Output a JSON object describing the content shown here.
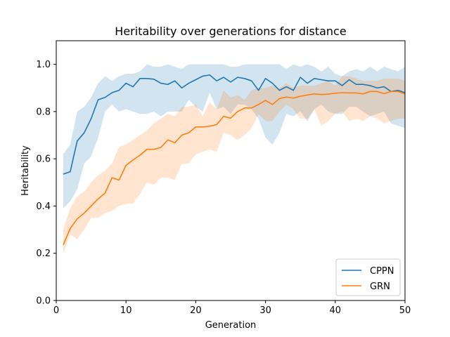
{
  "chart_data": {
    "type": "line",
    "title": "Heritability over generations for distance",
    "xlabel": "Generation",
    "ylabel": "Heritability",
    "xlim": [
      0,
      50
    ],
    "ylim": [
      0,
      1.1
    ],
    "xticks": [
      0,
      10,
      20,
      30,
      40,
      50
    ],
    "yticks": [
      0.0,
      0.2,
      0.4,
      0.6,
      0.8,
      1.0
    ],
    "xtick_labels": [
      "0",
      "10",
      "20",
      "30",
      "40",
      "50"
    ],
    "ytick_labels": [
      "0.0",
      "0.2",
      "0.4",
      "0.6",
      "0.8",
      "1.0"
    ],
    "grid": false,
    "legend_position": "lower-right",
    "x": [
      1,
      2,
      3,
      4,
      5,
      6,
      7,
      8,
      9,
      10,
      11,
      12,
      13,
      14,
      15,
      16,
      17,
      18,
      19,
      20,
      21,
      22,
      23,
      24,
      25,
      26,
      27,
      28,
      29,
      30,
      31,
      32,
      33,
      34,
      35,
      36,
      37,
      38,
      39,
      40,
      41,
      42,
      43,
      44,
      45,
      46,
      47,
      48,
      49,
      50
    ],
    "series": [
      {
        "name": "CPPN",
        "color": "#1f77b4",
        "values": [
          0.535,
          0.545,
          0.675,
          0.71,
          0.77,
          0.85,
          0.86,
          0.88,
          0.89,
          0.92,
          0.905,
          0.94,
          0.94,
          0.937,
          0.92,
          0.915,
          0.93,
          0.9,
          0.92,
          0.935,
          0.95,
          0.955,
          0.93,
          0.945,
          0.925,
          0.945,
          0.94,
          0.93,
          0.89,
          0.94,
          0.92,
          0.89,
          0.905,
          0.89,
          0.945,
          0.92,
          0.94,
          0.935,
          0.93,
          0.93,
          0.91,
          0.935,
          0.915,
          0.915,
          0.91,
          0.9,
          0.905,
          0.885,
          0.89,
          0.88
        ],
        "lower": [
          0.39,
          0.42,
          0.47,
          0.58,
          0.61,
          0.69,
          0.8,
          0.83,
          0.8,
          0.81,
          0.8,
          0.79,
          0.79,
          0.8,
          0.78,
          0.8,
          0.8,
          0.8,
          0.85,
          0.82,
          0.8,
          0.88,
          0.81,
          0.82,
          0.79,
          0.83,
          0.83,
          0.81,
          0.77,
          0.69,
          0.66,
          0.71,
          0.79,
          0.78,
          0.8,
          0.76,
          0.81,
          0.83,
          0.8,
          0.79,
          0.79,
          0.82,
          0.82,
          0.8,
          0.78,
          0.79,
          0.8,
          0.75,
          0.74,
          0.73
        ],
        "upper": [
          0.62,
          0.66,
          0.8,
          0.82,
          0.86,
          0.92,
          0.95,
          0.93,
          0.95,
          0.96,
          0.96,
          0.97,
          1.0,
          0.99,
          0.99,
          1.0,
          0.99,
          0.98,
          1.0,
          1.0,
          1.0,
          1.0,
          1.0,
          1.0,
          0.99,
          0.99,
          1.0,
          1.0,
          1.0,
          1.0,
          1.0,
          1.0,
          0.98,
          1.0,
          0.99,
          1.0,
          0.99,
          0.97,
          0.99,
          0.96,
          0.95,
          0.97,
          0.98,
          0.97,
          0.99,
          0.97,
          0.99,
          0.98,
          0.97,
          0.99
        ]
      },
      {
        "name": "GRN",
        "color": "#ff7f0e",
        "values": [
          0.235,
          0.305,
          0.345,
          0.37,
          0.4,
          0.43,
          0.455,
          0.52,
          0.51,
          0.572,
          0.595,
          0.615,
          0.64,
          0.64,
          0.648,
          0.68,
          0.668,
          0.7,
          0.71,
          0.735,
          0.735,
          0.738,
          0.745,
          0.78,
          0.772,
          0.8,
          0.815,
          0.815,
          0.83,
          0.847,
          0.83,
          0.855,
          0.862,
          0.857,
          0.865,
          0.87,
          0.875,
          0.872,
          0.874,
          0.878,
          0.88,
          0.879,
          0.879,
          0.875,
          0.885,
          0.885,
          0.876,
          0.885,
          0.885,
          0.875
        ],
        "lower": [
          0.2,
          0.28,
          0.26,
          0.3,
          0.35,
          0.35,
          0.37,
          0.38,
          0.4,
          0.41,
          0.41,
          0.45,
          0.5,
          0.49,
          0.52,
          0.52,
          0.51,
          0.58,
          0.58,
          0.62,
          0.63,
          0.64,
          0.63,
          0.71,
          0.7,
          0.68,
          0.7,
          0.73,
          0.79,
          0.76,
          0.76,
          0.8,
          0.83,
          0.81,
          0.77,
          0.77,
          0.81,
          0.74,
          0.76,
          0.79,
          0.8,
          0.76,
          0.77,
          0.76,
          0.78,
          0.77,
          0.75,
          0.76,
          0.77,
          0.77
        ],
        "upper": [
          0.3,
          0.39,
          0.44,
          0.46,
          0.5,
          0.53,
          0.55,
          0.58,
          0.65,
          0.66,
          0.68,
          0.7,
          0.72,
          0.75,
          0.77,
          0.79,
          0.78,
          0.82,
          0.82,
          0.83,
          0.78,
          0.84,
          0.81,
          0.89,
          0.86,
          0.87,
          0.85,
          0.89,
          0.9,
          0.9,
          0.91,
          0.9,
          0.92,
          0.9,
          0.91,
          0.91,
          0.91,
          0.92,
          0.93,
          0.91,
          0.95,
          0.95,
          0.94,
          0.93,
          0.93,
          0.93,
          0.94,
          0.94,
          0.94,
          0.93
        ]
      }
    ]
  }
}
